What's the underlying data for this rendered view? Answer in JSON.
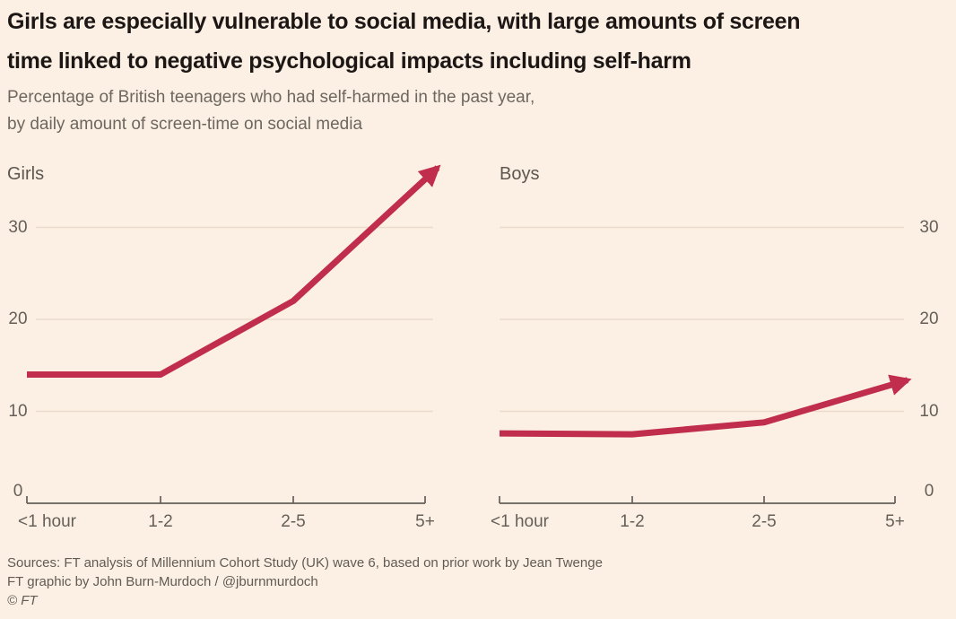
{
  "header": {
    "title_line1": "Girls are especially vulnerable to social media, with large amounts of screen",
    "title_line2": "time linked to negative psychological impacts including self-harm",
    "subtitle_line1": "Percentage of British teenagers who had self-harmed in the past year,",
    "subtitle_line2": "by daily amount of screen-time on social media"
  },
  "chart_data": [
    {
      "type": "line",
      "title": "Girls",
      "categories": [
        "<1 hour",
        "1-2",
        "2-5",
        "5+"
      ],
      "values": [
        14,
        14,
        22,
        36.5
      ],
      "yticks": [
        0,
        10,
        20,
        30
      ],
      "ylim": [
        0,
        38
      ],
      "y_axis_side": "left",
      "grid": true,
      "legend": "none",
      "arrow_end": true,
      "note": "last value is arrow tip rising off the top of the plot"
    },
    {
      "type": "line",
      "title": "Boys",
      "categories": [
        "<1 hour",
        "1-2",
        "2-5",
        "5+"
      ],
      "values": [
        7.6,
        7.5,
        8.8,
        13.4
      ],
      "yticks": [
        0,
        10,
        20,
        30
      ],
      "ylim": [
        0,
        38
      ],
      "y_axis_side": "right",
      "grid": true,
      "legend": "none",
      "arrow_end": true,
      "note": "last value is arrow tip"
    }
  ],
  "footer": {
    "sources": "Sources: FT analysis of Millennium Cohort Study (UK) wave 6, based on prior work by Jean Twenge",
    "credit": "FT graphic by John Burn-Murdoch / @jburnmurdoch",
    "copyright": "© FT"
  },
  "colors": {
    "background": "#fcf0e4",
    "line": "#c02d4d",
    "gridline": "#eadbcc",
    "axis": "#655f58",
    "title_text": "#1c1715",
    "subtitle_text": "#6e675f",
    "footer_text": "#615b54"
  }
}
